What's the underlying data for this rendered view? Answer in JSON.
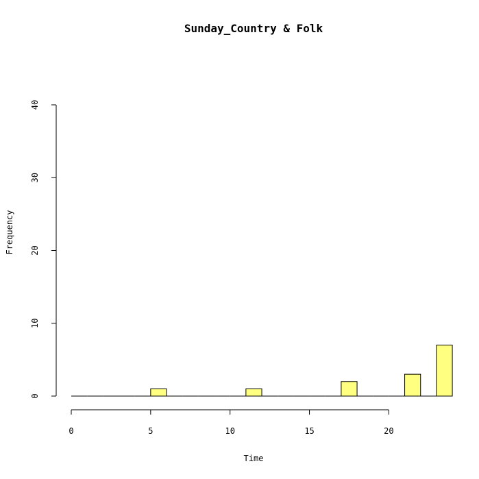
{
  "chart_data": {
    "type": "bar",
    "title": "Sunday_Country & Folk",
    "xlabel": "Time",
    "ylabel": "Frequency",
    "xlim": [
      0,
      24
    ],
    "ylim": [
      0,
      40
    ],
    "x_ticks": [
      0,
      5,
      10,
      15,
      20
    ],
    "y_ticks": [
      0,
      10,
      20,
      30,
      40
    ],
    "bin_width": 1,
    "bins": [
      {
        "start": 0,
        "end": 1,
        "value": 0
      },
      {
        "start": 1,
        "end": 2,
        "value": 0
      },
      {
        "start": 2,
        "end": 3,
        "value": 0
      },
      {
        "start": 3,
        "end": 4,
        "value": 0
      },
      {
        "start": 4,
        "end": 5,
        "value": 0
      },
      {
        "start": 5,
        "end": 6,
        "value": 1
      },
      {
        "start": 6,
        "end": 7,
        "value": 0
      },
      {
        "start": 7,
        "end": 8,
        "value": 0
      },
      {
        "start": 8,
        "end": 9,
        "value": 0
      },
      {
        "start": 9,
        "end": 10,
        "value": 0
      },
      {
        "start": 10,
        "end": 11,
        "value": 0
      },
      {
        "start": 11,
        "end": 12,
        "value": 1
      },
      {
        "start": 12,
        "end": 13,
        "value": 0
      },
      {
        "start": 13,
        "end": 14,
        "value": 0
      },
      {
        "start": 14,
        "end": 15,
        "value": 0
      },
      {
        "start": 15,
        "end": 16,
        "value": 0
      },
      {
        "start": 16,
        "end": 17,
        "value": 0
      },
      {
        "start": 17,
        "end": 18,
        "value": 2
      },
      {
        "start": 18,
        "end": 19,
        "value": 0
      },
      {
        "start": 19,
        "end": 20,
        "value": 0
      },
      {
        "start": 20,
        "end": 21,
        "value": 0
      },
      {
        "start": 21,
        "end": 22,
        "value": 3
      },
      {
        "start": 22,
        "end": 23,
        "value": 0
      },
      {
        "start": 23,
        "end": 24,
        "value": 7
      }
    ],
    "grid": false,
    "bar_color": "#ffff80",
    "bar_border": "#000000"
  }
}
